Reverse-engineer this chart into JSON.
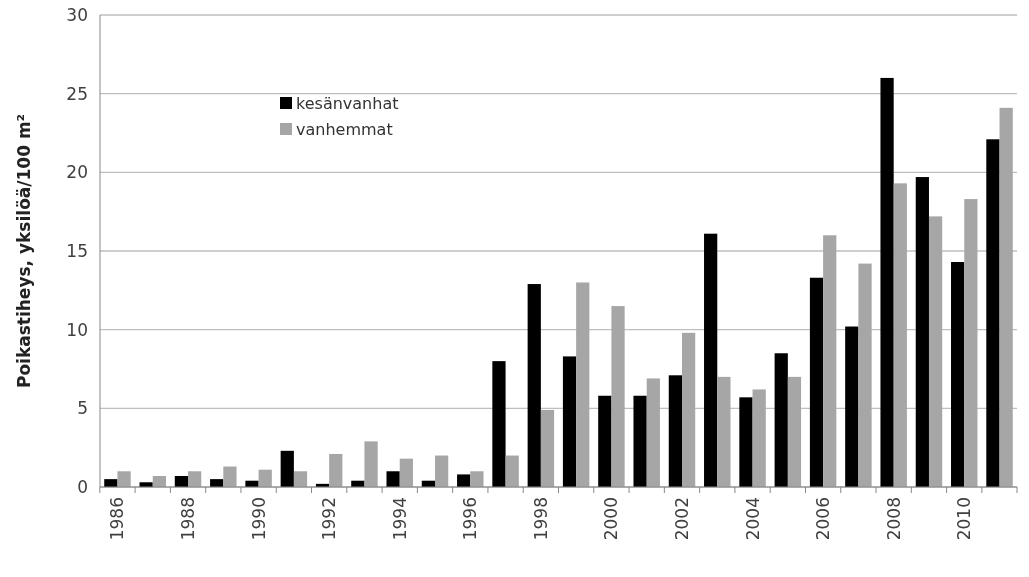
{
  "chart_data": {
    "type": "bar",
    "ylabel": "Poikastiheys, yksilöä/100 m²",
    "categories": [
      "1986",
      null,
      "1988",
      null,
      "1990",
      null,
      "1992",
      null,
      "1994",
      null,
      "1996",
      null,
      "1998",
      null,
      "2000",
      null,
      "2002",
      null,
      "2004",
      null,
      "2006",
      null,
      "2008",
      null,
      "2010",
      null
    ],
    "series": [
      {
        "name": "kesänvanhat",
        "color": "#000000",
        "values": [
          0.5,
          0.3,
          0.7,
          0.5,
          0.4,
          2.3,
          0.2,
          0.4,
          1.0,
          0.4,
          0.8,
          8.0,
          12.9,
          8.3,
          5.8,
          5.8,
          7.1,
          16.1,
          5.7,
          8.5,
          13.3,
          10.2,
          26.0,
          19.7,
          14.3,
          22.1
        ]
      },
      {
        "name": "vanhemmat",
        "color": "#a6a6a6",
        "values": [
          1.0,
          0.7,
          1.0,
          1.3,
          1.1,
          1.0,
          2.1,
          2.9,
          1.8,
          2.0,
          1.0,
          2.0,
          4.9,
          13.0,
          11.5,
          6.9,
          9.8,
          7.0,
          6.2,
          7.0,
          16.0,
          14.2,
          19.3,
          17.2,
          18.3,
          24.1
        ]
      }
    ],
    "ylim": [
      0,
      30
    ],
    "yticks": [
      0,
      5,
      10,
      15,
      20,
      25,
      30
    ],
    "grid": "y",
    "legend": "top left"
  }
}
